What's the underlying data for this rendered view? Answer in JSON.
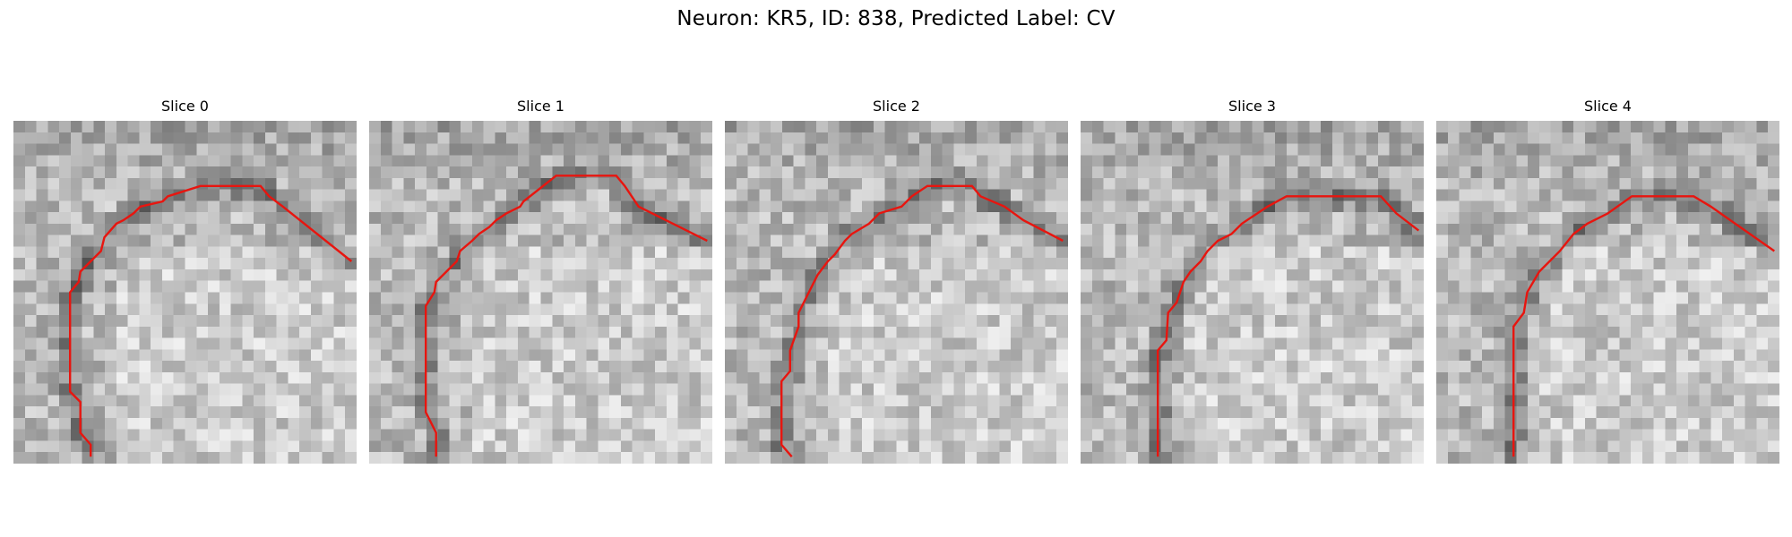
{
  "figure": {
    "title": "Neuron: KR5, ID: 838, Predicted Label: CV"
  },
  "contour_color": "#e8150f",
  "panels": [
    {
      "title": "Slice 0",
      "contour": [
        [
          0.225,
          0.98
        ],
        [
          0.225,
          0.945
        ],
        [
          0.195,
          0.91
        ],
        [
          0.195,
          0.82
        ],
        [
          0.165,
          0.79
        ],
        [
          0.165,
          0.5
        ],
        [
          0.19,
          0.47
        ],
        [
          0.195,
          0.44
        ],
        [
          0.225,
          0.41
        ],
        [
          0.255,
          0.38
        ],
        [
          0.265,
          0.34
        ],
        [
          0.3,
          0.3
        ],
        [
          0.32,
          0.29
        ],
        [
          0.35,
          0.27
        ],
        [
          0.37,
          0.25
        ],
        [
          0.435,
          0.235
        ],
        [
          0.45,
          0.22
        ],
        [
          0.545,
          0.19
        ],
        [
          0.72,
          0.19
        ],
        [
          0.745,
          0.22
        ],
        [
          0.785,
          0.25
        ],
        [
          0.985,
          0.41
        ]
      ]
    },
    {
      "title": "Slice 1",
      "contour": [
        [
          0.195,
          0.98
        ],
        [
          0.195,
          0.91
        ],
        [
          0.165,
          0.85
        ],
        [
          0.165,
          0.54
        ],
        [
          0.19,
          0.5
        ],
        [
          0.195,
          0.47
        ],
        [
          0.225,
          0.44
        ],
        [
          0.255,
          0.41
        ],
        [
          0.265,
          0.38
        ],
        [
          0.3,
          0.35
        ],
        [
          0.32,
          0.33
        ],
        [
          0.35,
          0.31
        ],
        [
          0.37,
          0.29
        ],
        [
          0.4,
          0.27
        ],
        [
          0.44,
          0.25
        ],
        [
          0.45,
          0.235
        ],
        [
          0.545,
          0.16
        ],
        [
          0.72,
          0.16
        ],
        [
          0.745,
          0.19
        ],
        [
          0.785,
          0.25
        ],
        [
          0.985,
          0.35
        ]
      ]
    },
    {
      "title": "Slice 2",
      "contour": [
        [
          0.195,
          0.98
        ],
        [
          0.165,
          0.945
        ],
        [
          0.165,
          0.76
        ],
        [
          0.19,
          0.73
        ],
        [
          0.19,
          0.67
        ],
        [
          0.215,
          0.6
        ],
        [
          0.215,
          0.56
        ],
        [
          0.245,
          0.5
        ],
        [
          0.27,
          0.45
        ],
        [
          0.3,
          0.41
        ],
        [
          0.32,
          0.39
        ],
        [
          0.35,
          0.35
        ],
        [
          0.37,
          0.33
        ],
        [
          0.42,
          0.3
        ],
        [
          0.45,
          0.27
        ],
        [
          0.515,
          0.25
        ],
        [
          0.545,
          0.22
        ],
        [
          0.59,
          0.19
        ],
        [
          0.72,
          0.19
        ],
        [
          0.745,
          0.22
        ],
        [
          0.815,
          0.25
        ],
        [
          0.87,
          0.29
        ],
        [
          0.985,
          0.35
        ]
      ]
    },
    {
      "title": "Slice 3",
      "contour": [
        [
          0.225,
          0.98
        ],
        [
          0.225,
          0.67
        ],
        [
          0.25,
          0.64
        ],
        [
          0.255,
          0.56
        ],
        [
          0.28,
          0.53
        ],
        [
          0.3,
          0.47
        ],
        [
          0.32,
          0.44
        ],
        [
          0.35,
          0.41
        ],
        [
          0.37,
          0.38
        ],
        [
          0.4,
          0.35
        ],
        [
          0.44,
          0.33
        ],
        [
          0.47,
          0.3
        ],
        [
          0.5,
          0.28
        ],
        [
          0.545,
          0.25
        ],
        [
          0.6,
          0.22
        ],
        [
          0.875,
          0.22
        ],
        [
          0.92,
          0.27
        ],
        [
          0.985,
          0.32
        ]
      ]
    },
    {
      "title": "Slice 4",
      "contour": [
        [
          0.225,
          0.98
        ],
        [
          0.225,
          0.6
        ],
        [
          0.255,
          0.56
        ],
        [
          0.265,
          0.5
        ],
        [
          0.3,
          0.44
        ],
        [
          0.33,
          0.41
        ],
        [
          0.36,
          0.38
        ],
        [
          0.4,
          0.33
        ],
        [
          0.44,
          0.3
        ],
        [
          0.5,
          0.27
        ],
        [
          0.57,
          0.22
        ],
        [
          0.75,
          0.22
        ],
        [
          0.8,
          0.25
        ],
        [
          0.985,
          0.38
        ]
      ]
    }
  ]
}
